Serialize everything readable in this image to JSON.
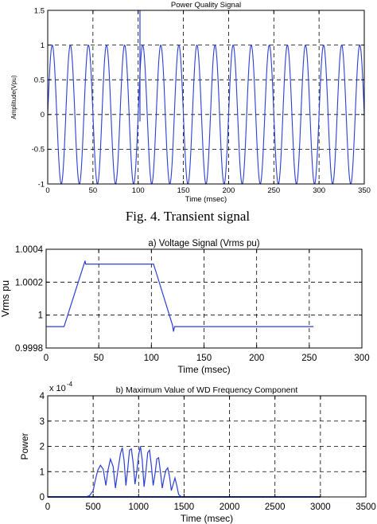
{
  "figure_caption": "Fig. 4.  Transient signal",
  "chart_data": [
    {
      "type": "line",
      "title": "Power Quality Signal",
      "xlabel": "Time (msec)",
      "ylabel": "Amplitude(Vpu)",
      "xlim": [
        0,
        350
      ],
      "ylim": [
        -1,
        1.5
      ],
      "xticks": [
        0,
        50,
        100,
        150,
        200,
        250,
        300,
        350
      ],
      "yticks": [
        -1,
        -0.5,
        0,
        0.5,
        1,
        1.5
      ],
      "ytick_labels": [
        "-1",
        "-0.5",
        "0",
        "0.5",
        "1",
        "1.5"
      ],
      "grid": true,
      "line_color": "#2b3fd6",
      "series": [
        {
          "waveform": "sine",
          "amplitude": 1,
          "frequency_hz": 50,
          "transient": {
            "t": 102,
            "peak": 1.5,
            "low": -0.1
          }
        }
      ]
    },
    {
      "type": "line",
      "title": "a) Voltage Signal (Vrms pu)",
      "xlabel": "Time (msec)",
      "ylabel": "Vrms pu",
      "xlim": [
        0,
        300
      ],
      "ylim": [
        0.9998,
        1.0004
      ],
      "xticks": [
        0,
        50,
        100,
        150,
        200,
        250,
        300
      ],
      "yticks": [
        0.9998,
        1,
        1.0002,
        1.0004
      ],
      "ytick_labels": [
        "0.9998",
        "1",
        "1.0002",
        "1.0004"
      ],
      "grid": true,
      "line_color": "#2b3fd6",
      "series": [
        {
          "x": [
            0,
            17,
            37,
            37.5,
            38,
            102,
            105,
            120,
            121,
            122,
            254
          ],
          "y": [
            0.99993,
            0.99993,
            1.00033,
            1.00031,
            1.00031,
            1.00031,
            1.00025,
            0.99994,
            0.9999,
            0.99993,
            0.99993
          ]
        }
      ]
    },
    {
      "type": "line",
      "title": "b) Maximum Value of WD Frequency Component",
      "xlabel": "Time (msec)",
      "ylabel": "Power",
      "scale_label": "x 10",
      "scale_exponent": "-4",
      "xlim": [
        0,
        3500
      ],
      "ylim": [
        0,
        4
      ],
      "xticks": [
        0,
        500,
        1000,
        1500,
        2000,
        2500,
        3000,
        3500
      ],
      "yticks": [
        0,
        1,
        2,
        3,
        4
      ],
      "ytick_labels": [
        "0",
        "1",
        "2",
        "3",
        "4"
      ],
      "grid": true,
      "line_color": "#2b3fd6",
      "series": [
        {
          "baseline_end": 3000,
          "x": [
            0,
            420,
            460,
            500,
            520,
            550,
            580,
            610,
            640,
            660,
            690,
            720,
            745,
            770,
            800,
            820,
            840,
            860,
            880,
            900,
            920,
            940,
            960,
            980,
            1000,
            1020,
            1040,
            1060,
            1080,
            1100,
            1120,
            1140,
            1160,
            1180,
            1200,
            1220,
            1240,
            1260,
            1280,
            1300,
            1320,
            1340,
            1360,
            1380,
            1400,
            1420,
            1440,
            1470,
            3000
          ],
          "y": [
            0,
            0,
            0.05,
            0.25,
            0.6,
            1.05,
            1.25,
            1.1,
            0.45,
            1.0,
            1.5,
            1.2,
            0.35,
            1.0,
            1.7,
            1.95,
            1.45,
            0.45,
            1.1,
            1.85,
            1.9,
            1.35,
            0.5,
            1.0,
            1.65,
            2.0,
            1.45,
            0.4,
            1.0,
            1.75,
            1.85,
            1.25,
            0.45,
            0.9,
            1.5,
            1.55,
            1.0,
            0.35,
            0.75,
            1.05,
            1.15,
            0.8,
            0.25,
            0.5,
            0.75,
            0.45,
            0.1,
            0,
            0
          ]
        }
      ]
    }
  ]
}
